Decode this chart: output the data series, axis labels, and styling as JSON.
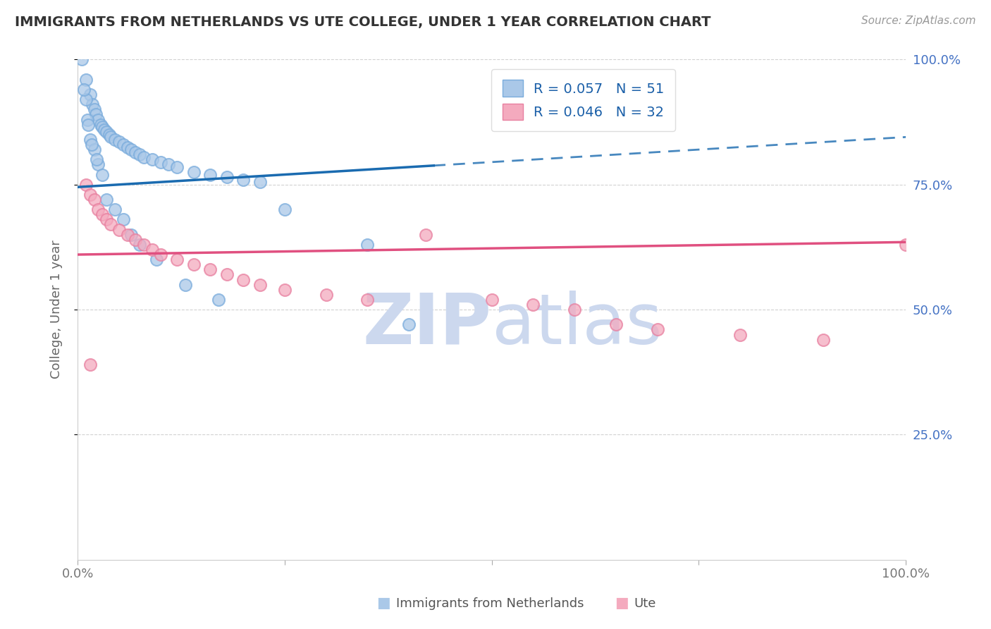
{
  "title": "IMMIGRANTS FROM NETHERLANDS VS UTE COLLEGE, UNDER 1 YEAR CORRELATION CHART",
  "source_text": "Source: ZipAtlas.com",
  "ylabel": "College, Under 1 year",
  "blue_scatter_x": [
    0.5,
    1.0,
    1.5,
    1.8,
    2.0,
    2.2,
    2.5,
    2.8,
    3.0,
    3.2,
    3.5,
    3.8,
    4.0,
    4.5,
    5.0,
    5.5,
    6.0,
    6.5,
    7.0,
    7.5,
    8.0,
    9.0,
    10.0,
    11.0,
    12.0,
    14.0,
    16.0,
    18.0,
    20.0,
    22.0,
    1.0,
    1.2,
    1.5,
    2.0,
    2.5,
    3.0,
    0.8,
    1.3,
    1.7,
    2.3,
    3.5,
    4.5,
    5.5,
    6.5,
    7.5,
    9.5,
    13.0,
    17.0,
    25.0,
    35.0,
    40.0
  ],
  "blue_scatter_y": [
    100.0,
    96.0,
    93.0,
    91.0,
    90.0,
    89.0,
    88.0,
    87.0,
    86.5,
    86.0,
    85.5,
    85.0,
    84.5,
    84.0,
    83.5,
    83.0,
    82.5,
    82.0,
    81.5,
    81.0,
    80.5,
    80.0,
    79.5,
    79.0,
    78.5,
    77.5,
    77.0,
    76.5,
    76.0,
    75.5,
    92.0,
    88.0,
    84.0,
    82.0,
    79.0,
    77.0,
    94.0,
    87.0,
    83.0,
    80.0,
    72.0,
    70.0,
    68.0,
    65.0,
    63.0,
    60.0,
    55.0,
    52.0,
    70.0,
    63.0,
    47.0
  ],
  "pink_scatter_x": [
    1.0,
    1.5,
    2.0,
    2.5,
    3.0,
    3.5,
    4.0,
    5.0,
    6.0,
    7.0,
    8.0,
    9.0,
    10.0,
    12.0,
    14.0,
    16.0,
    18.0,
    20.0,
    22.0,
    25.0,
    30.0,
    35.0,
    42.0,
    50.0,
    55.0,
    60.0,
    65.0,
    70.0,
    80.0,
    90.0,
    100.0,
    1.5
  ],
  "pink_scatter_y": [
    75.0,
    73.0,
    72.0,
    70.0,
    69.0,
    68.0,
    67.0,
    66.0,
    65.0,
    64.0,
    63.0,
    62.0,
    61.0,
    60.0,
    59.0,
    58.0,
    57.0,
    56.0,
    55.0,
    54.0,
    53.0,
    52.0,
    65.0,
    52.0,
    51.0,
    50.0,
    47.0,
    46.0,
    45.0,
    44.0,
    63.0,
    39.0
  ],
  "blue_line_y_start": 74.5,
  "blue_line_y_end": 84.5,
  "blue_solid_x_end": 43.0,
  "pink_line_y_start": 61.0,
  "pink_line_y_end": 63.5,
  "blue_color": "#aac8e8",
  "pink_color": "#f4aabe",
  "blue_scatter_edge": "#7aacdc",
  "pink_scatter_edge": "#e880a0",
  "blue_line_color": "#1a6bb0",
  "pink_line_color": "#e05080",
  "background_color": "#ffffff",
  "grid_color": "#cccccc",
  "watermark_color": "#ccd8ee",
  "right_axis_color": "#4472c4",
  "xlim": [
    0,
    100
  ],
  "ylim": [
    0,
    100
  ]
}
